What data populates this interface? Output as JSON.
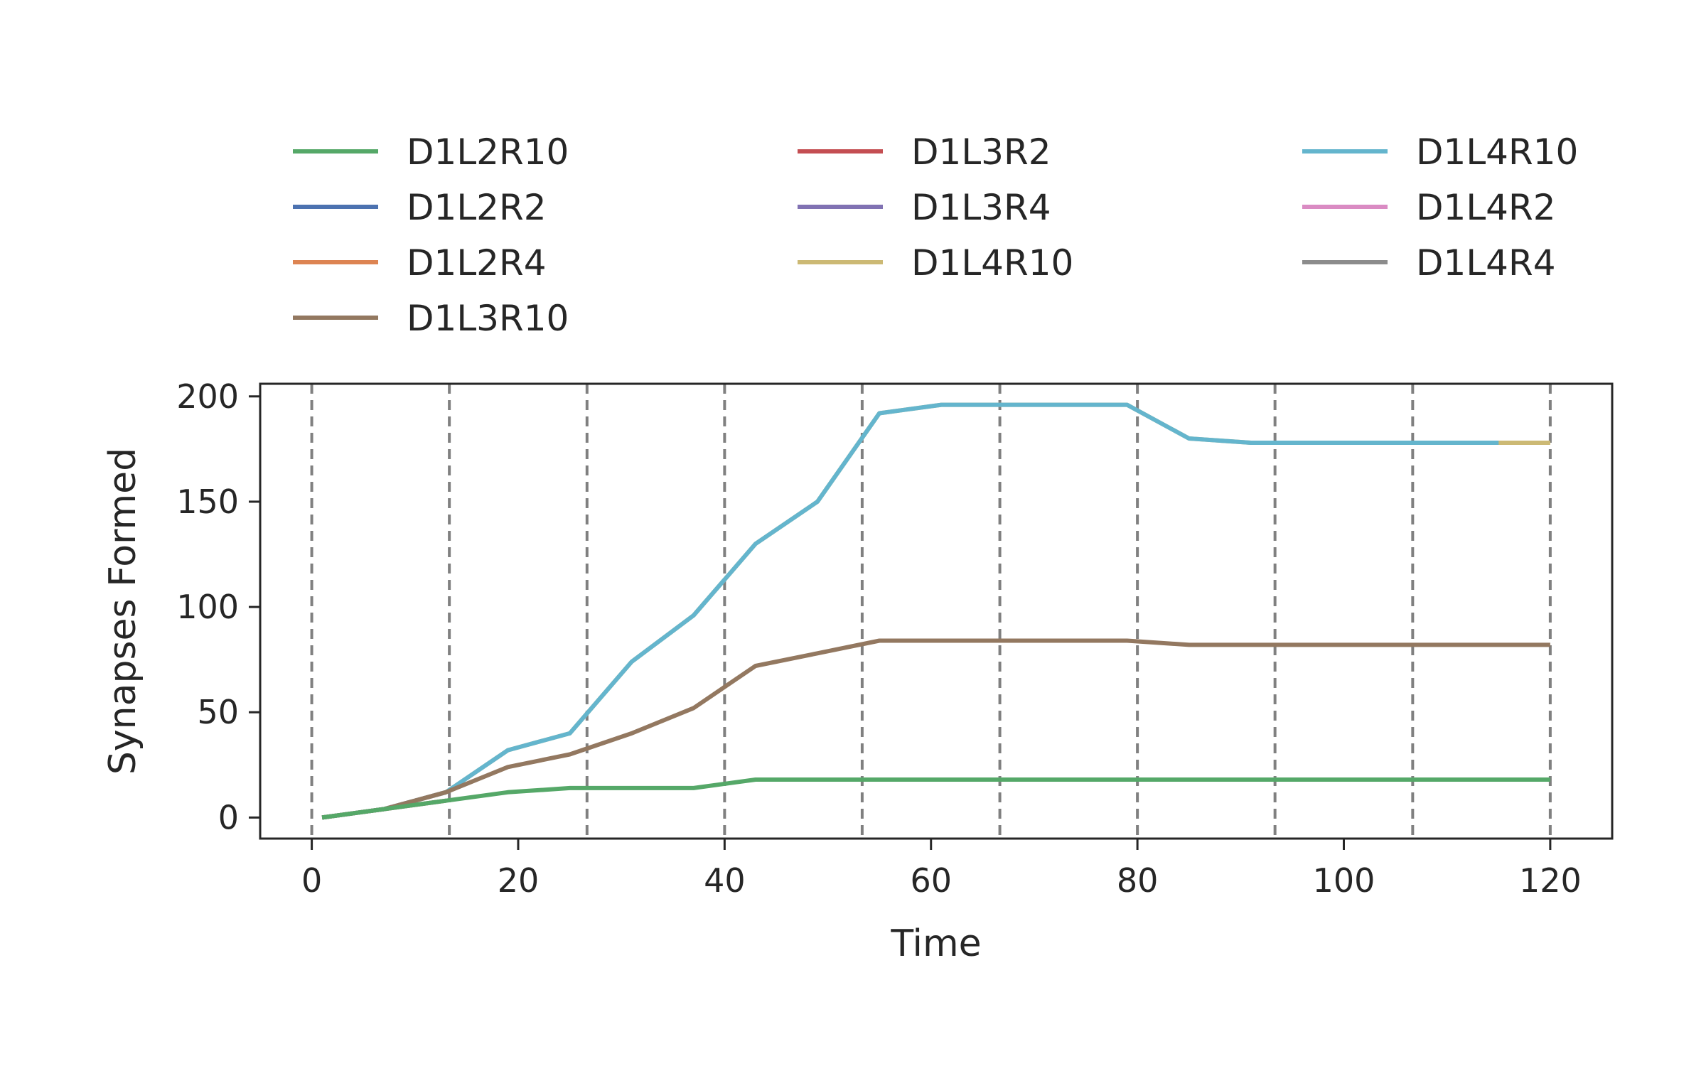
{
  "chart_data": {
    "type": "line",
    "title": "",
    "xlabel": "Time",
    "ylabel": "Synapses Formed",
    "xlim": [
      -5,
      126
    ],
    "ylim": [
      -10,
      206
    ],
    "xticks": [
      0,
      20,
      40,
      60,
      80,
      100,
      120
    ],
    "yticks": [
      0,
      50,
      100,
      150,
      200
    ],
    "grid": false,
    "legend_position": "top",
    "legend_columns": 3,
    "vlines": [
      0,
      13.33,
      26.67,
      40,
      53.33,
      66.67,
      80,
      93.33,
      106.67,
      120
    ],
    "vline_color": "#808080",
    "series": [
      {
        "name": "D1L2R10",
        "color": "#55a868",
        "x": [
          1,
          7,
          13,
          19,
          25,
          31,
          37,
          43,
          49,
          55,
          61,
          67,
          73,
          79,
          85,
          91,
          97,
          103,
          109,
          115,
          120
        ],
        "y": [
          0,
          4,
          8,
          12,
          14,
          14,
          14,
          18,
          18,
          18,
          18,
          18,
          18,
          18,
          18,
          18,
          18,
          18,
          18,
          18,
          18
        ]
      },
      {
        "name": "D1L2R2",
        "color": "#4c72b0",
        "x": [
          1,
          7,
          13
        ],
        "y": [
          0,
          4,
          8
        ]
      },
      {
        "name": "D1L2R4",
        "color": "#dd8452",
        "x": [
          1,
          7,
          13
        ],
        "y": [
          0,
          4,
          8
        ]
      },
      {
        "name": "D1L3R10",
        "color": "#937860",
        "x": [
          1,
          7,
          13,
          19,
          25,
          31,
          37,
          43,
          49,
          55,
          61,
          67,
          73,
          79,
          85,
          91,
          97,
          103,
          109,
          115,
          120
        ],
        "y": [
          0,
          4,
          12,
          24,
          30,
          40,
          52,
          72,
          78,
          84,
          84,
          84,
          84,
          84,
          82,
          82,
          82,
          82,
          82,
          82,
          82
        ]
      },
      {
        "name": "D1L3R2",
        "color": "#c44e52",
        "x": [
          1,
          7,
          13
        ],
        "y": [
          0,
          4,
          12
        ]
      },
      {
        "name": "D1L3R4",
        "color": "#8172b3",
        "x": [
          1,
          7,
          13
        ],
        "y": [
          0,
          4,
          12
        ]
      },
      {
        "name": "D1L4R10",
        "color": "#ccb974",
        "x": [
          1,
          7,
          13,
          19,
          25,
          31,
          37,
          43,
          49,
          55,
          61,
          67,
          73,
          79,
          85,
          91,
          97,
          103,
          109,
          115,
          120
        ],
        "y": [
          0,
          4,
          12,
          32,
          40,
          74,
          96,
          130,
          150,
          192,
          196,
          196,
          196,
          196,
          180,
          178,
          178,
          178,
          178,
          178,
          178
        ]
      },
      {
        "name": "D1L4R10",
        "color": "#64b5cd",
        "x": [
          1,
          7,
          13,
          19,
          25,
          31,
          37,
          43,
          49,
          55,
          61,
          67,
          73,
          79,
          85,
          91,
          97,
          103,
          109,
          115
        ],
        "y": [
          0,
          4,
          12,
          32,
          40,
          74,
          96,
          130,
          150,
          192,
          196,
          196,
          196,
          196,
          180,
          178,
          178,
          178,
          178,
          178
        ]
      },
      {
        "name": "D1L4R2",
        "color": "#da8bc3",
        "x": [
          1,
          7,
          13
        ],
        "y": [
          0,
          4,
          12
        ]
      },
      {
        "name": "D1L4R4",
        "color": "#8c8c8c",
        "x": [
          1,
          7,
          13
        ],
        "y": [
          0,
          4,
          12
        ]
      }
    ],
    "draw_order": [
      1,
      2,
      4,
      5,
      8,
      9,
      6,
      7,
      3,
      0
    ]
  }
}
